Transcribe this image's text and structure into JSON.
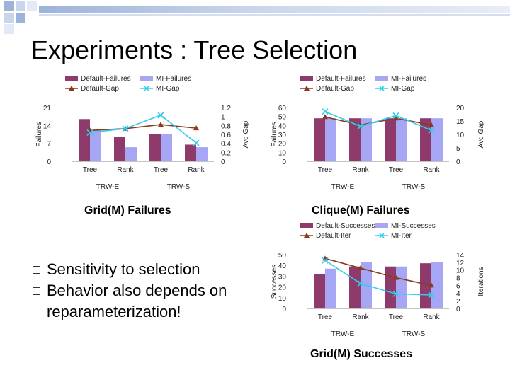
{
  "slide": {
    "title": "Experiments : Tree Selection",
    "bullets": [
      "Sensitivity to selection",
      "Behavior also depends on reparameterization!"
    ],
    "accent_colors": {
      "deco_blue": "#9DB3DA",
      "deco_light": "#D5DEEF"
    }
  },
  "chart_data": [
    {
      "type": "bar",
      "caption": "Grid(M) Failures",
      "categories": [
        "Tree",
        "Rank",
        "Tree",
        "Rank"
      ],
      "groups": [
        "TRW-E",
        "TRW-S"
      ],
      "ylabel": "Failures",
      "y2label": "Avg Gap",
      "ylim": [
        0,
        21
      ],
      "yticks": [
        "0",
        "7",
        "14",
        "21"
      ],
      "y2lim": [
        0,
        1.2
      ],
      "y2ticks": [
        "0",
        "0.2",
        "0.4",
        "0.6",
        "0.8",
        "1",
        "1.2"
      ],
      "legend": [
        "Default-Failures",
        "MI-Failures",
        "Default-Gap",
        "MI-Gap"
      ],
      "series": [
        {
          "name": "Default-Failures",
          "kind": "bar",
          "axis": "left",
          "color": "#8E3B6B",
          "values": [
            16.5,
            9.5,
            10.5,
            6.5
          ]
        },
        {
          "name": "MI-Failures",
          "kind": "bar",
          "axis": "left",
          "color": "#A6A6F5",
          "values": [
            12.5,
            5.5,
            10.5,
            5.5
          ]
        },
        {
          "name": "Default-Gap",
          "kind": "line",
          "axis": "right",
          "marker": "triangle",
          "color": "#8B3A1F",
          "values": [
            0.69,
            0.73,
            0.82,
            0.74
          ]
        },
        {
          "name": "MI-Gap",
          "kind": "line",
          "axis": "right",
          "marker": "x",
          "color": "#33CCEE",
          "values": [
            0.64,
            0.73,
            1.03,
            0.41
          ]
        }
      ]
    },
    {
      "type": "bar",
      "caption": "Clique(M) Failures",
      "categories": [
        "Tree",
        "Rank",
        "Tree",
        "Rank"
      ],
      "groups": [
        "TRW-E",
        "TRW-S"
      ],
      "ylabel": "Failures",
      "y2label": "Avg Gap",
      "ylim": [
        0,
        60
      ],
      "yticks": [
        "0",
        "10",
        "20",
        "30",
        "40",
        "50",
        "60"
      ],
      "y2lim": [
        0,
        20
      ],
      "y2ticks": [
        "0",
        "5",
        "10",
        "15",
        "20"
      ],
      "legend": [
        "Default-Failures",
        "MI-Failures",
        "Default-Gap",
        "MI-Gap"
      ],
      "series": [
        {
          "name": "Default-Failures",
          "kind": "bar",
          "axis": "left",
          "color": "#8E3B6B",
          "values": [
            48,
            48,
            48,
            48
          ]
        },
        {
          "name": "MI-Failures",
          "kind": "bar",
          "axis": "left",
          "color": "#A6A6F5",
          "values": [
            48,
            48,
            48,
            48
          ]
        },
        {
          "name": "Default-Gap",
          "kind": "line",
          "axis": "right",
          "marker": "triangle",
          "color": "#8B3A1F",
          "values": [
            16.5,
            13.5,
            16,
            13.5
          ]
        },
        {
          "name": "MI-Gap",
          "kind": "line",
          "axis": "right",
          "marker": "x",
          "color": "#33CCEE",
          "values": [
            18.5,
            13,
            17,
            11.5
          ]
        }
      ]
    },
    {
      "type": "bar",
      "caption": "Grid(M) Successes",
      "categories": [
        "Tree",
        "Rank",
        "Tree",
        "Rank"
      ],
      "groups": [
        "TRW-E",
        "TRW-S"
      ],
      "ylabel": "Successes",
      "y2label": "Iterations",
      "ylim": [
        0,
        50
      ],
      "yticks": [
        "0",
        "10",
        "20",
        "30",
        "40",
        "50"
      ],
      "y2lim": [
        0,
        14
      ],
      "y2ticks": [
        "0",
        "2",
        "4",
        "6",
        "8",
        "10",
        "12",
        "14"
      ],
      "legend": [
        "Default-Successes",
        "MI-Successes",
        "Default-Iter",
        "MI-Iter"
      ],
      "series": [
        {
          "name": "Default-Successes",
          "kind": "bar",
          "axis": "left",
          "color": "#8E3B6B",
          "values": [
            32,
            39,
            39,
            42
          ]
        },
        {
          "name": "MI-Successes",
          "kind": "bar",
          "axis": "left",
          "color": "#A6A6F5",
          "values": [
            37,
            43,
            39,
            43
          ]
        },
        {
          "name": "Default-Iter",
          "kind": "line",
          "axis": "right",
          "marker": "triangle",
          "color": "#8B3A1F",
          "values": [
            13,
            10.5,
            8,
            6
          ]
        },
        {
          "name": "MI-Iter",
          "kind": "line",
          "axis": "right",
          "marker": "x",
          "color": "#33CCEE",
          "values": [
            12.5,
            6.5,
            3.8,
            3.5
          ]
        }
      ]
    }
  ]
}
